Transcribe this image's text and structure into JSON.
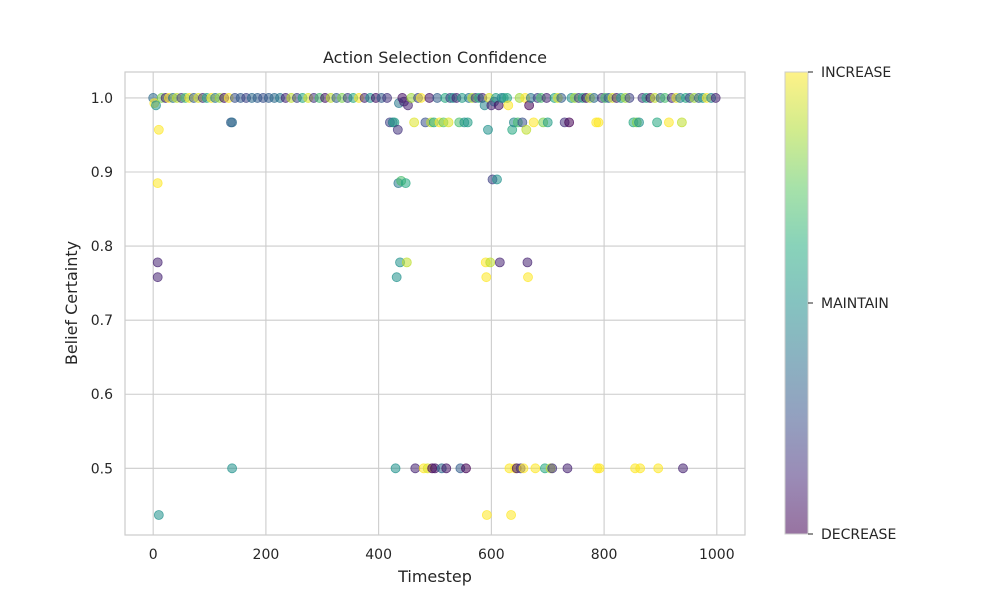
{
  "chart_data": {
    "type": "scatter",
    "title": "Action Selection Confidence",
    "xlabel": "Timestep",
    "ylabel": "Belief Certainty",
    "xlim": [
      -50,
      1050
    ],
    "ylim": [
      0.41,
      1.035
    ],
    "x_ticks": [
      0,
      200,
      400,
      600,
      800,
      1000
    ],
    "y_ticks": [
      0.5,
      0.6,
      0.7,
      0.8,
      0.9,
      1.0
    ],
    "x_tick_labels": [
      "0",
      "200",
      "400",
      "600",
      "800",
      "1000"
    ],
    "y_tick_labels": [
      "0.5",
      "0.6",
      "0.7",
      "0.8",
      "0.9",
      "1.0"
    ],
    "grid": true,
    "colormap": "viridis",
    "point_alpha": 0.55,
    "colorbar": {
      "tick_labels": [
        "DECREASE",
        "MAINTAIN",
        "INCREASE"
      ],
      "tick_values": [
        0,
        1,
        2
      ]
    },
    "points": [
      {
        "x": 0,
        "y": 1.0,
        "c": 0.35
      },
      {
        "x": 2,
        "y": 0.993,
        "c": 1.0
      },
      {
        "x": 5,
        "y": 0.99,
        "c": 0.5
      },
      {
        "x": 8,
        "y": 0.778,
        "c": 0.1
      },
      {
        "x": 8,
        "y": 0.758,
        "c": 0.1
      },
      {
        "x": 8,
        "y": 0.885,
        "c": 1.0
      },
      {
        "x": 10,
        "y": 0.957,
        "c": 1.0
      },
      {
        "x": 10,
        "y": 0.437,
        "c": 0.5
      },
      {
        "x": 15,
        "y": 1.0,
        "c": 0.8
      },
      {
        "x": 22,
        "y": 1.0,
        "c": 0.1
      },
      {
        "x": 28,
        "y": 1.0,
        "c": 1.0
      },
      {
        "x": 35,
        "y": 1.0,
        "c": 0.4
      },
      {
        "x": 42,
        "y": 1.0,
        "c": 0.9
      },
      {
        "x": 50,
        "y": 1.0,
        "c": 0.2
      },
      {
        "x": 57,
        "y": 1.0,
        "c": 0.7
      },
      {
        "x": 64,
        "y": 1.0,
        "c": 1.0
      },
      {
        "x": 72,
        "y": 1.0,
        "c": 0.3
      },
      {
        "x": 80,
        "y": 1.0,
        "c": 0.95
      },
      {
        "x": 88,
        "y": 1.0,
        "c": 0.15
      },
      {
        "x": 95,
        "y": 1.0,
        "c": 0.6
      },
      {
        "x": 103,
        "y": 1.0,
        "c": 1.0
      },
      {
        "x": 110,
        "y": 1.0,
        "c": 0.4
      },
      {
        "x": 118,
        "y": 1.0,
        "c": 0.85
      },
      {
        "x": 126,
        "y": 1.0,
        "c": 0.05
      },
      {
        "x": 134,
        "y": 1.0,
        "c": 1.0
      },
      {
        "x": 138,
        "y": 0.967,
        "c": 0.3
      },
      {
        "x": 140,
        "y": 0.967,
        "c": 0.35
      },
      {
        "x": 140,
        "y": 0.5,
        "c": 0.5
      },
      {
        "x": 145,
        "y": 1.0,
        "c": 0.25
      },
      {
        "x": 155,
        "y": 1.0,
        "c": 0.3
      },
      {
        "x": 165,
        "y": 1.0,
        "c": 0.2
      },
      {
        "x": 175,
        "y": 1.0,
        "c": 0.35
      },
      {
        "x": 185,
        "y": 1.0,
        "c": 0.3
      },
      {
        "x": 195,
        "y": 1.0,
        "c": 0.25
      },
      {
        "x": 205,
        "y": 1.0,
        "c": 0.3
      },
      {
        "x": 215,
        "y": 1.0,
        "c": 0.35
      },
      {
        "x": 225,
        "y": 1.0,
        "c": 0.4
      },
      {
        "x": 235,
        "y": 1.0,
        "c": 0.1
      },
      {
        "x": 245,
        "y": 1.0,
        "c": 0.9
      },
      {
        "x": 255,
        "y": 1.0,
        "c": 0.2
      },
      {
        "x": 265,
        "y": 1.0,
        "c": 0.6
      },
      {
        "x": 275,
        "y": 1.0,
        "c": 0.95
      },
      {
        "x": 285,
        "y": 1.0,
        "c": 0.15
      },
      {
        "x": 295,
        "y": 1.0,
        "c": 0.7
      },
      {
        "x": 305,
        "y": 1.0,
        "c": 0.05
      },
      {
        "x": 315,
        "y": 1.0,
        "c": 0.9
      },
      {
        "x": 325,
        "y": 1.0,
        "c": 0.3
      },
      {
        "x": 335,
        "y": 1.0,
        "c": 0.8
      },
      {
        "x": 345,
        "y": 1.0,
        "c": 0.2
      },
      {
        "x": 355,
        "y": 1.0,
        "c": 0.6
      },
      {
        "x": 365,
        "y": 1.0,
        "c": 1.0
      },
      {
        "x": 375,
        "y": 1.0,
        "c": 0.1
      },
      {
        "x": 385,
        "y": 1.0,
        "c": 0.5
      },
      {
        "x": 395,
        "y": 1.0,
        "c": 0.05
      },
      {
        "x": 405,
        "y": 1.0,
        "c": 0.3
      },
      {
        "x": 415,
        "y": 1.0,
        "c": 0.15
      },
      {
        "x": 420,
        "y": 0.967,
        "c": 0.2
      },
      {
        "x": 425,
        "y": 0.967,
        "c": 0.4
      },
      {
        "x": 428,
        "y": 0.967,
        "c": 0.55
      },
      {
        "x": 430,
        "y": 0.5,
        "c": 0.5
      },
      {
        "x": 432,
        "y": 0.758,
        "c": 0.5
      },
      {
        "x": 434,
        "y": 0.957,
        "c": 0.15
      },
      {
        "x": 435,
        "y": 0.885,
        "c": 0.4
      },
      {
        "x": 436,
        "y": 0.993,
        "c": 0.4
      },
      {
        "x": 438,
        "y": 0.778,
        "c": 0.5
      },
      {
        "x": 440,
        "y": 0.888,
        "c": 0.7
      },
      {
        "x": 442,
        "y": 1.0,
        "c": 0.05
      },
      {
        "x": 445,
        "y": 0.995,
        "c": 0.1
      },
      {
        "x": 448,
        "y": 0.885,
        "c": 0.6
      },
      {
        "x": 450,
        "y": 0.778,
        "c": 0.9
      },
      {
        "x": 452,
        "y": 0.99,
        "c": 0.1
      },
      {
        "x": 458,
        "y": 1.0,
        "c": 0.85
      },
      {
        "x": 463,
        "y": 0.967,
        "c": 0.95
      },
      {
        "x": 465,
        "y": 0.5,
        "c": 0.1
      },
      {
        "x": 470,
        "y": 1.0,
        "c": 0.2
      },
      {
        "x": 475,
        "y": 1.0,
        "c": 1.0
      },
      {
        "x": 480,
        "y": 0.5,
        "c": 1.0
      },
      {
        "x": 483,
        "y": 0.967,
        "c": 0.25
      },
      {
        "x": 487,
        "y": 0.5,
        "c": 0.95
      },
      {
        "x": 490,
        "y": 1.0,
        "c": 0.05
      },
      {
        "x": 493,
        "y": 0.967,
        "c": 0.9
      },
      {
        "x": 495,
        "y": 0.5,
        "c": 0.0
      },
      {
        "x": 498,
        "y": 0.967,
        "c": 0.6
      },
      {
        "x": 500,
        "y": 0.5,
        "c": 0.05
      },
      {
        "x": 504,
        "y": 1.0,
        "c": 0.3
      },
      {
        "x": 508,
        "y": 0.967,
        "c": 1.0
      },
      {
        "x": 512,
        "y": 0.5,
        "c": 0.35
      },
      {
        "x": 515,
        "y": 0.967,
        "c": 0.75
      },
      {
        "x": 518,
        "y": 1.0,
        "c": 0.6
      },
      {
        "x": 520,
        "y": 0.5,
        "c": 0.05
      },
      {
        "x": 524,
        "y": 0.967,
        "c": 0.95
      },
      {
        "x": 527,
        "y": 1.0,
        "c": 0.2
      },
      {
        "x": 532,
        "y": 1.0,
        "c": 0.5
      },
      {
        "x": 538,
        "y": 1.0,
        "c": 0.1
      },
      {
        "x": 543,
        "y": 0.967,
        "c": 0.7
      },
      {
        "x": 545,
        "y": 0.5,
        "c": 0.3
      },
      {
        "x": 548,
        "y": 1.0,
        "c": 0.55
      },
      {
        "x": 552,
        "y": 0.967,
        "c": 0.5
      },
      {
        "x": 555,
        "y": 0.5,
        "c": 0.0
      },
      {
        "x": 558,
        "y": 0.967,
        "c": 0.55
      },
      {
        "x": 560,
        "y": 1.0,
        "c": 0.4
      },
      {
        "x": 566,
        "y": 1.0,
        "c": 0.9
      },
      {
        "x": 572,
        "y": 1.0,
        "c": 0.2
      },
      {
        "x": 578,
        "y": 1.0,
        "c": 0.6
      },
      {
        "x": 584,
        "y": 1.0,
        "c": 0.1
      },
      {
        "x": 588,
        "y": 0.99,
        "c": 0.45
      },
      {
        "x": 590,
        "y": 0.778,
        "c": 1.0
      },
      {
        "x": 591,
        "y": 0.758,
        "c": 1.0
      },
      {
        "x": 592,
        "y": 0.437,
        "c": 1.0
      },
      {
        "x": 594,
        "y": 0.957,
        "c": 0.5
      },
      {
        "x": 596,
        "y": 1.0,
        "c": 0.95
      },
      {
        "x": 598,
        "y": 0.778,
        "c": 0.9
      },
      {
        "x": 600,
        "y": 0.99,
        "c": 0.1
      },
      {
        "x": 602,
        "y": 0.89,
        "c": 0.2
      },
      {
        "x": 605,
        "y": 0.995,
        "c": 0.3
      },
      {
        "x": 608,
        "y": 1.0,
        "c": 0.55
      },
      {
        "x": 610,
        "y": 0.89,
        "c": 0.5
      },
      {
        "x": 613,
        "y": 0.99,
        "c": 0.05
      },
      {
        "x": 615,
        "y": 0.778,
        "c": 0.1
      },
      {
        "x": 618,
        "y": 1.0,
        "c": 0.45
      },
      {
        "x": 622,
        "y": 1.0,
        "c": 0.5
      },
      {
        "x": 628,
        "y": 1.0,
        "c": 0.6
      },
      {
        "x": 630,
        "y": 0.99,
        "c": 1.0
      },
      {
        "x": 632,
        "y": 0.5,
        "c": 1.0
      },
      {
        "x": 635,
        "y": 0.437,
        "c": 1.0
      },
      {
        "x": 637,
        "y": 0.957,
        "c": 0.6
      },
      {
        "x": 640,
        "y": 0.967,
        "c": 0.45
      },
      {
        "x": 642,
        "y": 0.5,
        "c": 1.0
      },
      {
        "x": 645,
        "y": 0.5,
        "c": 0.05
      },
      {
        "x": 647,
        "y": 0.967,
        "c": 0.7
      },
      {
        "x": 650,
        "y": 1.0,
        "c": 0.85
      },
      {
        "x": 652,
        "y": 0.5,
        "c": 0.15
      },
      {
        "x": 655,
        "y": 0.967,
        "c": 0.25
      },
      {
        "x": 657,
        "y": 0.5,
        "c": 1.0
      },
      {
        "x": 660,
        "y": 1.0,
        "c": 1.0
      },
      {
        "x": 662,
        "y": 0.957,
        "c": 0.9
      },
      {
        "x": 664,
        "y": 0.778,
        "c": 0.1
      },
      {
        "x": 665,
        "y": 0.758,
        "c": 1.0
      },
      {
        "x": 667,
        "y": 0.99,
        "c": 0.0
      },
      {
        "x": 670,
        "y": 1.0,
        "c": 0.4
      },
      {
        "x": 675,
        "y": 0.967,
        "c": 1.0
      },
      {
        "x": 678,
        "y": 0.5,
        "c": 1.0
      },
      {
        "x": 682,
        "y": 1.0,
        "c": 0.2
      },
      {
        "x": 688,
        "y": 1.0,
        "c": 0.7
      },
      {
        "x": 692,
        "y": 0.967,
        "c": 0.8
      },
      {
        "x": 695,
        "y": 0.5,
        "c": 0.6
      },
      {
        "x": 698,
        "y": 1.0,
        "c": 0.1
      },
      {
        "x": 700,
        "y": 0.967,
        "c": 0.55
      },
      {
        "x": 705,
        "y": 0.5,
        "c": 0.9
      },
      {
        "x": 708,
        "y": 0.5,
        "c": 0.15
      },
      {
        "x": 712,
        "y": 1.0,
        "c": 0.6
      },
      {
        "x": 718,
        "y": 1.0,
        "c": 0.95
      },
      {
        "x": 724,
        "y": 1.0,
        "c": 0.3
      },
      {
        "x": 730,
        "y": 0.967,
        "c": 0.15
      },
      {
        "x": 735,
        "y": 0.5,
        "c": 0.1
      },
      {
        "x": 738,
        "y": 0.967,
        "c": 0.0
      },
      {
        "x": 742,
        "y": 1.0,
        "c": 0.5
      },
      {
        "x": 748,
        "y": 1.0,
        "c": 0.85
      },
      {
        "x": 755,
        "y": 1.0,
        "c": 0.2
      },
      {
        "x": 762,
        "y": 1.0,
        "c": 0.6
      },
      {
        "x": 768,
        "y": 1.0,
        "c": 0.05
      },
      {
        "x": 775,
        "y": 1.0,
        "c": 0.9
      },
      {
        "x": 782,
        "y": 1.0,
        "c": 0.35
      },
      {
        "x": 786,
        "y": 0.967,
        "c": 1.0
      },
      {
        "x": 788,
        "y": 0.5,
        "c": 1.0
      },
      {
        "x": 790,
        "y": 0.967,
        "c": 1.0
      },
      {
        "x": 792,
        "y": 0.5,
        "c": 1.0
      },
      {
        "x": 796,
        "y": 1.0,
        "c": 0.15
      },
      {
        "x": 802,
        "y": 1.0,
        "c": 0.7
      },
      {
        "x": 808,
        "y": 1.0,
        "c": 0.3
      },
      {
        "x": 815,
        "y": 1.0,
        "c": 0.95
      },
      {
        "x": 822,
        "y": 1.0,
        "c": 0.1
      },
      {
        "x": 830,
        "y": 1.0,
        "c": 0.55
      },
      {
        "x": 838,
        "y": 1.0,
        "c": 0.85
      },
      {
        "x": 845,
        "y": 1.0,
        "c": 0.2
      },
      {
        "x": 852,
        "y": 0.967,
        "c": 0.6
      },
      {
        "x": 855,
        "y": 0.5,
        "c": 1.0
      },
      {
        "x": 858,
        "y": 0.967,
        "c": 0.8
      },
      {
        "x": 862,
        "y": 0.967,
        "c": 0.5
      },
      {
        "x": 864,
        "y": 0.5,
        "c": 1.0
      },
      {
        "x": 868,
        "y": 1.0,
        "c": 0.15
      },
      {
        "x": 875,
        "y": 1.0,
        "c": 0.6
      },
      {
        "x": 882,
        "y": 1.0,
        "c": 0.05
      },
      {
        "x": 890,
        "y": 1.0,
        "c": 0.9
      },
      {
        "x": 894,
        "y": 0.967,
        "c": 0.6
      },
      {
        "x": 896,
        "y": 0.5,
        "c": 1.0
      },
      {
        "x": 900,
        "y": 1.0,
        "c": 0.3
      },
      {
        "x": 908,
        "y": 1.0,
        "c": 0.7
      },
      {
        "x": 915,
        "y": 0.967,
        "c": 1.0
      },
      {
        "x": 920,
        "y": 1.0,
        "c": 0.1
      },
      {
        "x": 928,
        "y": 1.0,
        "c": 0.95
      },
      {
        "x": 935,
        "y": 1.0,
        "c": 0.4
      },
      {
        "x": 938,
        "y": 0.967,
        "c": 0.9
      },
      {
        "x": 940,
        "y": 0.5,
        "c": 0.1
      },
      {
        "x": 945,
        "y": 1.0,
        "c": 0.6
      },
      {
        "x": 952,
        "y": 1.0,
        "c": 0.2
      },
      {
        "x": 960,
        "y": 1.0,
        "c": 0.85
      },
      {
        "x": 968,
        "y": 1.0,
        "c": 0.3
      },
      {
        "x": 975,
        "y": 1.0,
        "c": 0.55
      },
      {
        "x": 982,
        "y": 1.0,
        "c": 1.0
      },
      {
        "x": 990,
        "y": 1.0,
        "c": 0.45
      },
      {
        "x": 998,
        "y": 1.0,
        "c": 0.1
      }
    ]
  }
}
